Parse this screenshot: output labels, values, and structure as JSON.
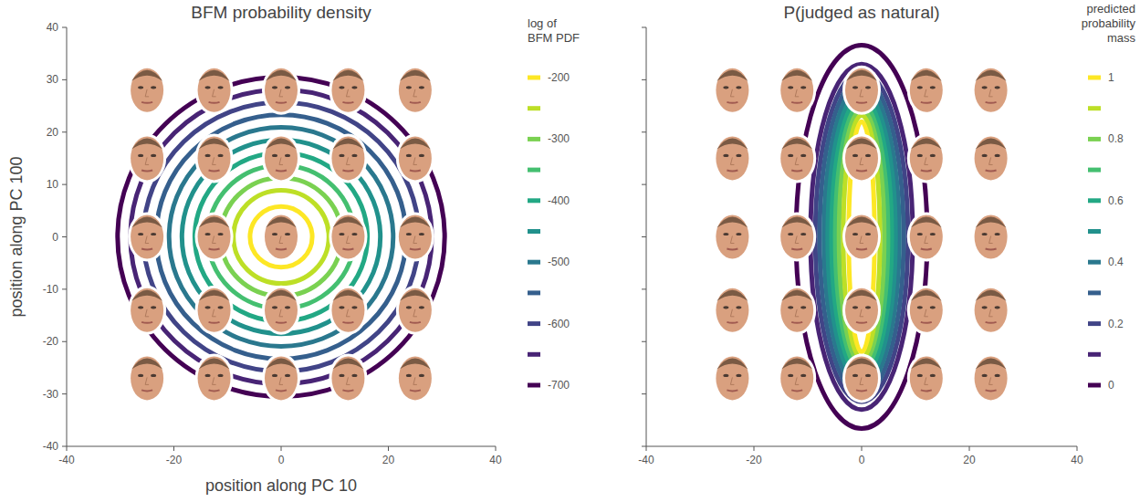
{
  "chart_data": [
    {
      "type": "contour",
      "title": "BFM probability density",
      "x_label": "position along PC 10",
      "y_label": "position along PC 100",
      "xlim": [
        -40,
        40
      ],
      "ylim": [
        -40,
        40
      ],
      "xticks": [
        -40,
        -20,
        0,
        20,
        40
      ],
      "yticks": [
        40,
        30,
        20,
        10,
        0,
        -10,
        -20,
        -30,
        -40
      ],
      "legend": "right",
      "legend_title": "log of BFM PDF",
      "levels": [
        -200,
        -250,
        -300,
        -350,
        -400,
        -450,
        -500,
        -550,
        -600,
        -650,
        -700
      ],
      "level_ticks": [
        -200,
        -300,
        -400,
        -500,
        -600,
        -700
      ],
      "colors": [
        "#fde725",
        "#bddf26",
        "#7ad151",
        "#44bf70",
        "#22a884",
        "#21918c",
        "#2a788e",
        "#355f8d",
        "#414487",
        "#482475",
        "#440154"
      ],
      "radius_x": [
        5.8,
        8.9,
        11.3,
        13.7,
        16.1,
        18.5,
        20.9,
        23.3,
        25.7,
        28.1,
        30.5
      ],
      "radius_y": [
        5.8,
        8.9,
        11.3,
        13.7,
        16.1,
        18.5,
        20.9,
        23.3,
        25.7,
        28.1,
        30.5
      ],
      "face_x": [
        -25,
        -12.5,
        0,
        12.5,
        25,
        -25,
        -12.5,
        0,
        12.5,
        25,
        -25,
        -12.5,
        0,
        12.5,
        25,
        -25,
        -12.5,
        0,
        12.5,
        25,
        -25,
        -12.5,
        0,
        12.5,
        25
      ],
      "face_y": [
        28,
        28,
        28,
        28,
        28,
        15,
        15,
        15,
        15,
        15,
        0,
        0,
        0,
        0,
        0,
        -14,
        -14,
        -14,
        -14,
        -14,
        -27,
        -27,
        -27,
        -27,
        -27
      ]
    },
    {
      "type": "contour",
      "title": "P(judged as natural)",
      "xlim": [
        -40,
        40
      ],
      "ylim": [
        -40,
        40
      ],
      "xticks": [
        -40,
        -20,
        0,
        20,
        40
      ],
      "yticks": [
        40,
        30,
        20,
        10,
        0,
        -10,
        -20,
        -30,
        -40
      ],
      "tick_labels": "x",
      "legend": "right",
      "legend_title": "predicted probability mass",
      "levels": [
        1,
        0.9,
        0.8,
        0.7,
        0.6,
        0.5,
        0.4,
        0.3,
        0.2,
        0.1,
        0
      ],
      "level_ticks": [
        1,
        0.8,
        0.6,
        0.4,
        0.2,
        0
      ],
      "colors": [
        "#fde725",
        "#bddf26",
        "#7ad151",
        "#44bf70",
        "#22a884",
        "#21918c",
        "#2a788e",
        "#355f8d",
        "#414487",
        "#482475",
        "#440154"
      ],
      "radius_x": [
        2.4,
        3.4,
        4.2,
        4.9,
        5.6,
        6.3,
        7.0,
        7.8,
        8.6,
        9.5,
        12.2
      ],
      "radius_y": [
        22,
        23.2,
        24.2,
        25.3,
        26.5,
        27.8,
        29,
        30.2,
        31.5,
        33,
        36.6
      ],
      "face_x": [
        -24,
        -12,
        0,
        12,
        24,
        -24,
        -12,
        0,
        12,
        24,
        -24,
        -12,
        0,
        12,
        24,
        -24,
        -12,
        0,
        12,
        24,
        -24,
        -12,
        0,
        12,
        24
      ],
      "face_y": [
        28,
        28,
        28,
        28,
        28,
        15,
        15,
        15,
        15,
        15,
        0,
        0,
        0,
        0,
        0,
        -14,
        -14,
        -14,
        -14,
        -14,
        -27,
        -27,
        -27,
        -27,
        -27
      ]
    }
  ]
}
